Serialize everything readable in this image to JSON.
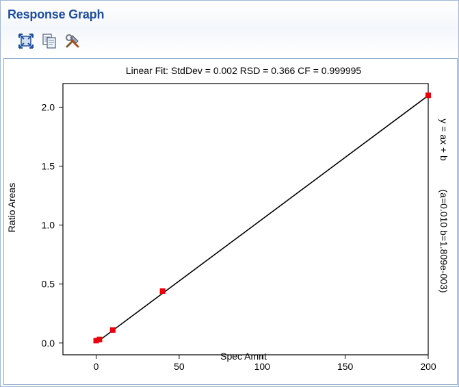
{
  "window": {
    "title": "Response Graph"
  },
  "toolbar": {
    "buttons": [
      {
        "icon": "fit-to-window-icon"
      },
      {
        "icon": "copy-icon"
      },
      {
        "icon": "tools-icon"
      }
    ]
  },
  "chart_data": {
    "type": "scatter",
    "title": "Linear Fit: StdDev = 0.002 RSD = 0.366 CF = 0.999995",
    "xlabel": "Spec Amnt",
    "ylabel": "Ratio Areas",
    "right_label_equation": "y = ax + b",
    "right_label_coeffs": "(a=0.010 b=1.809e-003)",
    "xlim": [
      -20,
      200
    ],
    "ylim": [
      -0.1,
      2.2
    ],
    "x_ticks": [
      0,
      50,
      100,
      150,
      200
    ],
    "x_tick_labels": [
      "0",
      "50",
      "100",
      "150",
      "200"
    ],
    "y_ticks": [
      0.0,
      0.5,
      1.0,
      1.5,
      2.0
    ],
    "y_tick_labels": [
      "0.0",
      "0.5",
      "1.0",
      "1.5",
      "2.0"
    ],
    "series": [
      {
        "x": [
          0,
          2,
          10,
          40,
          200
        ],
        "y": [
          0.02,
          0.03,
          0.11,
          0.44,
          2.1
        ],
        "color": "#e8000b"
      }
    ],
    "fit_line": {
      "x": [
        0,
        200
      ],
      "y": [
        0.0018,
        2.098
      ]
    },
    "fit_color": "#000000",
    "grid": false
  }
}
